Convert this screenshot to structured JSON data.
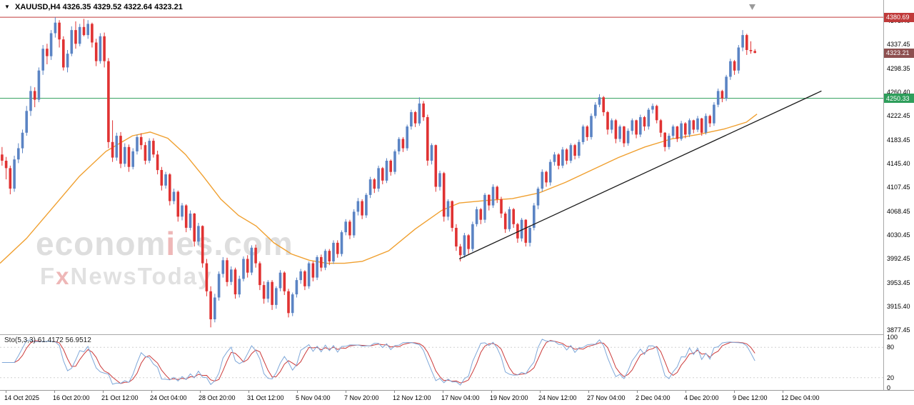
{
  "header": {
    "symbol": "XAUUSD,H4",
    "ohlc": "4326.35 4329.52 4322.64 4323.21"
  },
  "watermark": {
    "line1_pre": "econom",
    "line1_accent": "i",
    "line1_post": "es.com",
    "line2_pre": "F",
    "line2_accent": "x",
    "line2_post": "NewsToday"
  },
  "indicator": {
    "label": "Sto(5,3,3)",
    "value_k": "61.4172",
    "value_d": "56.9512",
    "k_color": "#7fa8d9",
    "d_color": "#cc3b3b",
    "levels": [
      20,
      80
    ],
    "axis_labels": [
      {
        "text": "100",
        "value": 100
      },
      {
        "text": "80",
        "value": 80
      },
      {
        "text": "20",
        "value": 20
      },
      {
        "text": "0",
        "value": 0
      }
    ]
  },
  "chart_data": {
    "type": "candlestick",
    "symbol": "XAUUSD",
    "timeframe": "H4",
    "title": "XAUUSD,H4",
    "current": {
      "open": 4326.35,
      "high": 4329.52,
      "low": 4322.64,
      "close": 4323.21
    },
    "ylim": [
      3872,
      4390
    ],
    "y_ticks": [
      "4375.40",
      "4337.45",
      "4298.35",
      "4260.40",
      "4222.45",
      "4183.45",
      "4145.40",
      "4107.45",
      "4068.45",
      "4030.45",
      "3992.45",
      "3953.45",
      "3915.40",
      "3877.45"
    ],
    "axis_markers": [
      {
        "text": "4380.69",
        "price": 4380.69,
        "bg": "#c03a3a",
        "role": "resistance"
      },
      {
        "text": "4250.33",
        "price": 4250.33,
        "bg": "#2e9e5b",
        "role": "support"
      },
      {
        "text": "4323.21",
        "price": 4323.21,
        "bg": "#8d4f4f",
        "role": "current-price"
      }
    ],
    "x_labels": [
      "14 Oct 2025",
      "16 Oct 20:00",
      "21 Oct 12:00",
      "24 Oct 04:00",
      "28 Oct 20:00",
      "31 Oct 12:00",
      "5 Nov 04:00",
      "7 Nov 20:00",
      "12 Nov 12:00",
      "17 Nov 04:00",
      "19 Nov 20:00",
      "24 Nov 12:00",
      "27 Nov 04:00",
      "2 Dec 04:00",
      "4 Dec 20:00",
      "9 Dec 12:00",
      "12 Dec 04:00"
    ],
    "colors": {
      "up": "#5b84c4",
      "down": "#e03232",
      "background": "#ffffff"
    },
    "overlays": {
      "resistance_line": {
        "price": 4380.69,
        "color": "#c03a3a"
      },
      "support_line": {
        "price": 4250.33,
        "color": "#2e9e5b"
      },
      "trendline": {
        "x1_frac": 0.52,
        "price1": 3992,
        "x2_frac": 0.93,
        "price2": 4262,
        "color": "#1a1a1a"
      },
      "moving_average": {
        "color": "#f0a030",
        "points": [
          [
            0,
            3985
          ],
          [
            0.03,
            4025
          ],
          [
            0.06,
            4075
          ],
          [
            0.09,
            4125
          ],
          [
            0.12,
            4165
          ],
          [
            0.15,
            4190
          ],
          [
            0.17,
            4196
          ],
          [
            0.19,
            4186
          ],
          [
            0.21,
            4160
          ],
          [
            0.23,
            4125
          ],
          [
            0.25,
            4088
          ],
          [
            0.27,
            4062
          ],
          [
            0.29,
            4045
          ],
          [
            0.31,
            4018
          ],
          [
            0.33,
            4000
          ],
          [
            0.35,
            3990
          ],
          [
            0.37,
            3985
          ],
          [
            0.39,
            3985
          ],
          [
            0.41,
            3988
          ],
          [
            0.44,
            4005
          ],
          [
            0.47,
            4040
          ],
          [
            0.5,
            4070
          ],
          [
            0.52,
            4082
          ],
          [
            0.55,
            4086
          ],
          [
            0.58,
            4089
          ],
          [
            0.61,
            4098
          ],
          [
            0.64,
            4115
          ],
          [
            0.67,
            4135
          ],
          [
            0.7,
            4155
          ],
          [
            0.73,
            4172
          ],
          [
            0.76,
            4185
          ],
          [
            0.79,
            4192
          ],
          [
            0.82,
            4201
          ],
          [
            0.845,
            4212
          ],
          [
            0.857,
            4225
          ]
        ]
      }
    },
    "candles": [
      [
        4160,
        4172,
        4142,
        4150
      ],
      [
        4150,
        4156,
        4120,
        4138
      ],
      [
        4138,
        4142,
        4096,
        4105
      ],
      [
        4105,
        4158,
        4100,
        4152
      ],
      [
        4152,
        4178,
        4146,
        4170
      ],
      [
        4170,
        4200,
        4162,
        4195
      ],
      [
        4195,
        4238,
        4190,
        4230
      ],
      [
        4230,
        4270,
        4222,
        4262
      ],
      [
        4262,
        4268,
        4236,
        4248
      ],
      [
        4248,
        4300,
        4244,
        4295
      ],
      [
        4295,
        4336,
        4288,
        4330
      ],
      [
        4330,
        4338,
        4305,
        4318
      ],
      [
        4318,
        4360,
        4312,
        4355
      ],
      [
        4355,
        4380.7,
        4348,
        4372
      ],
      [
        4372,
        4376,
        4332,
        4345
      ],
      [
        4345,
        4350,
        4295,
        4300
      ],
      [
        4300,
        4328,
        4292,
        4322
      ],
      [
        4322,
        4366,
        4318,
        4360
      ],
      [
        4360,
        4374,
        4330,
        4338
      ],
      [
        4338,
        4370,
        4334,
        4365
      ],
      [
        4365,
        4378,
        4350,
        4352
      ],
      [
        4352,
        4376,
        4346,
        4370
      ],
      [
        4370,
        4372,
        4332,
        4340
      ],
      [
        4340,
        4346,
        4302,
        4310
      ],
      [
        4310,
        4355,
        4306,
        4350
      ],
      [
        4350,
        4356,
        4300,
        4310
      ],
      [
        4310,
        4315,
        4170,
        4180
      ],
      [
        4180,
        4215,
        4148,
        4155
      ],
      [
        4155,
        4195,
        4150,
        4190
      ],
      [
        4190,
        4196,
        4138,
        4145
      ],
      [
        4145,
        4178,
        4140,
        4172
      ],
      [
        4172,
        4176,
        4132,
        4140
      ],
      [
        4140,
        4170,
        4136,
        4165
      ],
      [
        4165,
        4192,
        4160,
        4188
      ],
      [
        4188,
        4194,
        4168,
        4175
      ],
      [
        4175,
        4180,
        4144,
        4150
      ],
      [
        4150,
        4186,
        4146,
        4182
      ],
      [
        4182,
        4186,
        4155,
        4160
      ],
      [
        4160,
        4166,
        4128,
        4135
      ],
      [
        4135,
        4140,
        4102,
        4110
      ],
      [
        4110,
        4132,
        4105,
        4128
      ],
      [
        4128,
        4130,
        4078,
        4085
      ],
      [
        4085,
        4105,
        4080,
        4100
      ],
      [
        4100,
        4102,
        4052,
        4060
      ],
      [
        4060,
        4082,
        4054,
        4078
      ],
      [
        4078,
        4080,
        4035,
        4042
      ],
      [
        4042,
        4070,
        4038,
        4065
      ],
      [
        4065,
        4066,
        4012,
        4020
      ],
      [
        4020,
        4050,
        4014,
        4045
      ],
      [
        4045,
        4046,
        3978,
        3985
      ],
      [
        3985,
        3992,
        3932,
        3940
      ],
      [
        3940,
        3948,
        3882,
        3895
      ],
      [
        3895,
        3936,
        3890,
        3930
      ],
      [
        3930,
        3972,
        3925,
        3968
      ],
      [
        3968,
        3995,
        3962,
        3990
      ],
      [
        3990,
        3994,
        3948,
        3955
      ],
      [
        3955,
        3980,
        3950,
        3975
      ],
      [
        3975,
        3978,
        3928,
        3935
      ],
      [
        3935,
        3965,
        3930,
        3960
      ],
      [
        3960,
        3996,
        3956,
        3992
      ],
      [
        3992,
        3998,
        3962,
        3970
      ],
      [
        3970,
        4014,
        3966,
        4010
      ],
      [
        4010,
        4015,
        3978,
        3985
      ],
      [
        3985,
        3988,
        3942,
        3950
      ],
      [
        3950,
        3956,
        3920,
        3928
      ],
      [
        3928,
        3958,
        3922,
        3955
      ],
      [
        3955,
        3958,
        3910,
        3918
      ],
      [
        3918,
        3948,
        3912,
        3945
      ],
      [
        3945,
        3974,
        3940,
        3970
      ],
      [
        3970,
        3972,
        3934,
        3940
      ],
      [
        3940,
        3944,
        3898,
        3905
      ],
      [
        3905,
        3938,
        3900,
        3935
      ],
      [
        3935,
        3962,
        3930,
        3958
      ],
      [
        3958,
        3976,
        3952,
        3972
      ],
      [
        3972,
        3974,
        3942,
        3948
      ],
      [
        3948,
        3988,
        3944,
        3985
      ],
      [
        3985,
        3988,
        3956,
        3962
      ],
      [
        3962,
        3998,
        3958,
        3995
      ],
      [
        3995,
        3999,
        3972,
        3978
      ],
      [
        3978,
        4008,
        3974,
        4005
      ],
      [
        4005,
        4008,
        3982,
        3988
      ],
      [
        3988,
        4022,
        3984,
        4018
      ],
      [
        4018,
        4022,
        3994,
        4000
      ],
      [
        4000,
        4038,
        3996,
        4035
      ],
      [
        4035,
        4056,
        4030,
        4052
      ],
      [
        4052,
        4055,
        4024,
        4030
      ],
      [
        4030,
        4072,
        4026,
        4068
      ],
      [
        4068,
        4090,
        4062,
        4085
      ],
      [
        4085,
        4088,
        4056,
        4062
      ],
      [
        4062,
        4098,
        4058,
        4095
      ],
      [
        4095,
        4124,
        4090,
        4120
      ],
      [
        4120,
        4122,
        4098,
        4105
      ],
      [
        4105,
        4142,
        4100,
        4138
      ],
      [
        4138,
        4140,
        4112,
        4118
      ],
      [
        4118,
        4154,
        4114,
        4150
      ],
      [
        4150,
        4152,
        4126,
        4132
      ],
      [
        4132,
        4168,
        4128,
        4165
      ],
      [
        4165,
        4188,
        4160,
        4185
      ],
      [
        4185,
        4188,
        4164,
        4170
      ],
      [
        4170,
        4208,
        4166,
        4205
      ],
      [
        4205,
        4232,
        4200,
        4228
      ],
      [
        4228,
        4230,
        4204,
        4210
      ],
      [
        4210,
        4252,
        4206,
        4242
      ],
      [
        4242,
        4246,
        4214,
        4220
      ],
      [
        4220,
        4224,
        4142,
        4150
      ],
      [
        4150,
        4178,
        4144,
        4175
      ],
      [
        4175,
        4176,
        4100,
        4108
      ],
      [
        4108,
        4134,
        4102,
        4130
      ],
      [
        4130,
        4132,
        4052,
        4060
      ],
      [
        4060,
        4088,
        4054,
        4085
      ],
      [
        4085,
        4086,
        4036,
        4042
      ],
      [
        4042,
        4048,
        4005,
        4012
      ],
      [
        4012,
        4016,
        3988,
        3998
      ],
      [
        3998,
        4034,
        3994,
        4030
      ],
      [
        4030,
        4032,
        4000,
        4008
      ],
      [
        4008,
        4052,
        4004,
        4048
      ],
      [
        4048,
        4076,
        4044,
        4072
      ],
      [
        4072,
        4074,
        4048,
        4055
      ],
      [
        4055,
        4098,
        4050,
        4095
      ],
      [
        4095,
        4096,
        4070,
        4078
      ],
      [
        4078,
        4112,
        4074,
        4108
      ],
      [
        4108,
        4110,
        4082,
        4088
      ],
      [
        4088,
        4092,
        4058,
        4065
      ],
      [
        4065,
        4068,
        4034,
        4040
      ],
      [
        4040,
        4076,
        4036,
        4072
      ],
      [
        4072,
        4074,
        4042,
        4048
      ],
      [
        4048,
        4050,
        4018,
        4025
      ],
      [
        4025,
        4058,
        4020,
        4055
      ],
      [
        4055,
        4056,
        4012,
        4018
      ],
      [
        4018,
        4046,
        4012,
        4042
      ],
      [
        4042,
        4082,
        4038,
        4078
      ],
      [
        4078,
        4108,
        4072,
        4105
      ],
      [
        4105,
        4136,
        4100,
        4132
      ],
      [
        4132,
        4134,
        4108,
        4115
      ],
      [
        4115,
        4152,
        4110,
        4148
      ],
      [
        4148,
        4164,
        4142,
        4160
      ],
      [
        4160,
        4162,
        4136,
        4142
      ],
      [
        4142,
        4172,
        4138,
        4168
      ],
      [
        4168,
        4170,
        4144,
        4150
      ],
      [
        4150,
        4178,
        4146,
        4175
      ],
      [
        4175,
        4177,
        4152,
        4158
      ],
      [
        4158,
        4184,
        4154,
        4180
      ],
      [
        4180,
        4208,
        4176,
        4205
      ],
      [
        4205,
        4207,
        4182,
        4188
      ],
      [
        4188,
        4226,
        4184,
        4222
      ],
      [
        4222,
        4244,
        4218,
        4240
      ],
      [
        4240,
        4257,
        4236,
        4252
      ],
      [
        4252,
        4254,
        4222,
        4228
      ],
      [
        4228,
        4230,
        4192,
        4200
      ],
      [
        4200,
        4218,
        4194,
        4215
      ],
      [
        4215,
        4217,
        4178,
        4185
      ],
      [
        4185,
        4208,
        4180,
        4205
      ],
      [
        4205,
        4206,
        4172,
        4178
      ],
      [
        4178,
        4202,
        4174,
        4198
      ],
      [
        4198,
        4218,
        4192,
        4215
      ],
      [
        4215,
        4216,
        4186,
        4192
      ],
      [
        4192,
        4224,
        4188,
        4220
      ],
      [
        4220,
        4222,
        4198,
        4205
      ],
      [
        4205,
        4235,
        4200,
        4232
      ],
      [
        4232,
        4242,
        4226,
        4238
      ],
      [
        4238,
        4240,
        4210,
        4215
      ],
      [
        4215,
        4217,
        4188,
        4195
      ],
      [
        4195,
        4196,
        4165,
        4172
      ],
      [
        4172,
        4194,
        4168,
        4190
      ],
      [
        4190,
        4208,
        4186,
        4205
      ],
      [
        4205,
        4206,
        4180,
        4185
      ],
      [
        4185,
        4214,
        4182,
        4210
      ],
      [
        4210,
        4212,
        4186,
        4192
      ],
      [
        4192,
        4218,
        4188,
        4215
      ],
      [
        4215,
        4216,
        4194,
        4200
      ],
      [
        4200,
        4222,
        4196,
        4218
      ],
      [
        4218,
        4219,
        4190,
        4195
      ],
      [
        4195,
        4226,
        4192,
        4222
      ],
      [
        4222,
        4224,
        4204,
        4210
      ],
      [
        4210,
        4244,
        4206,
        4240
      ],
      [
        4240,
        4266,
        4236,
        4262
      ],
      [
        4262,
        4264,
        4244,
        4250
      ],
      [
        4250,
        4288,
        4246,
        4285
      ],
      [
        4285,
        4314,
        4280,
        4310
      ],
      [
        4310,
        4312,
        4288,
        4295
      ],
      [
        4295,
        4336,
        4290,
        4332
      ],
      [
        4332,
        4360,
        4326,
        4352
      ],
      [
        4352,
        4354,
        4320,
        4328
      ],
      [
        4328,
        4342,
        4322,
        4326
      ],
      [
        4326.35,
        4329.52,
        4322.64,
        4323.21
      ]
    ]
  }
}
